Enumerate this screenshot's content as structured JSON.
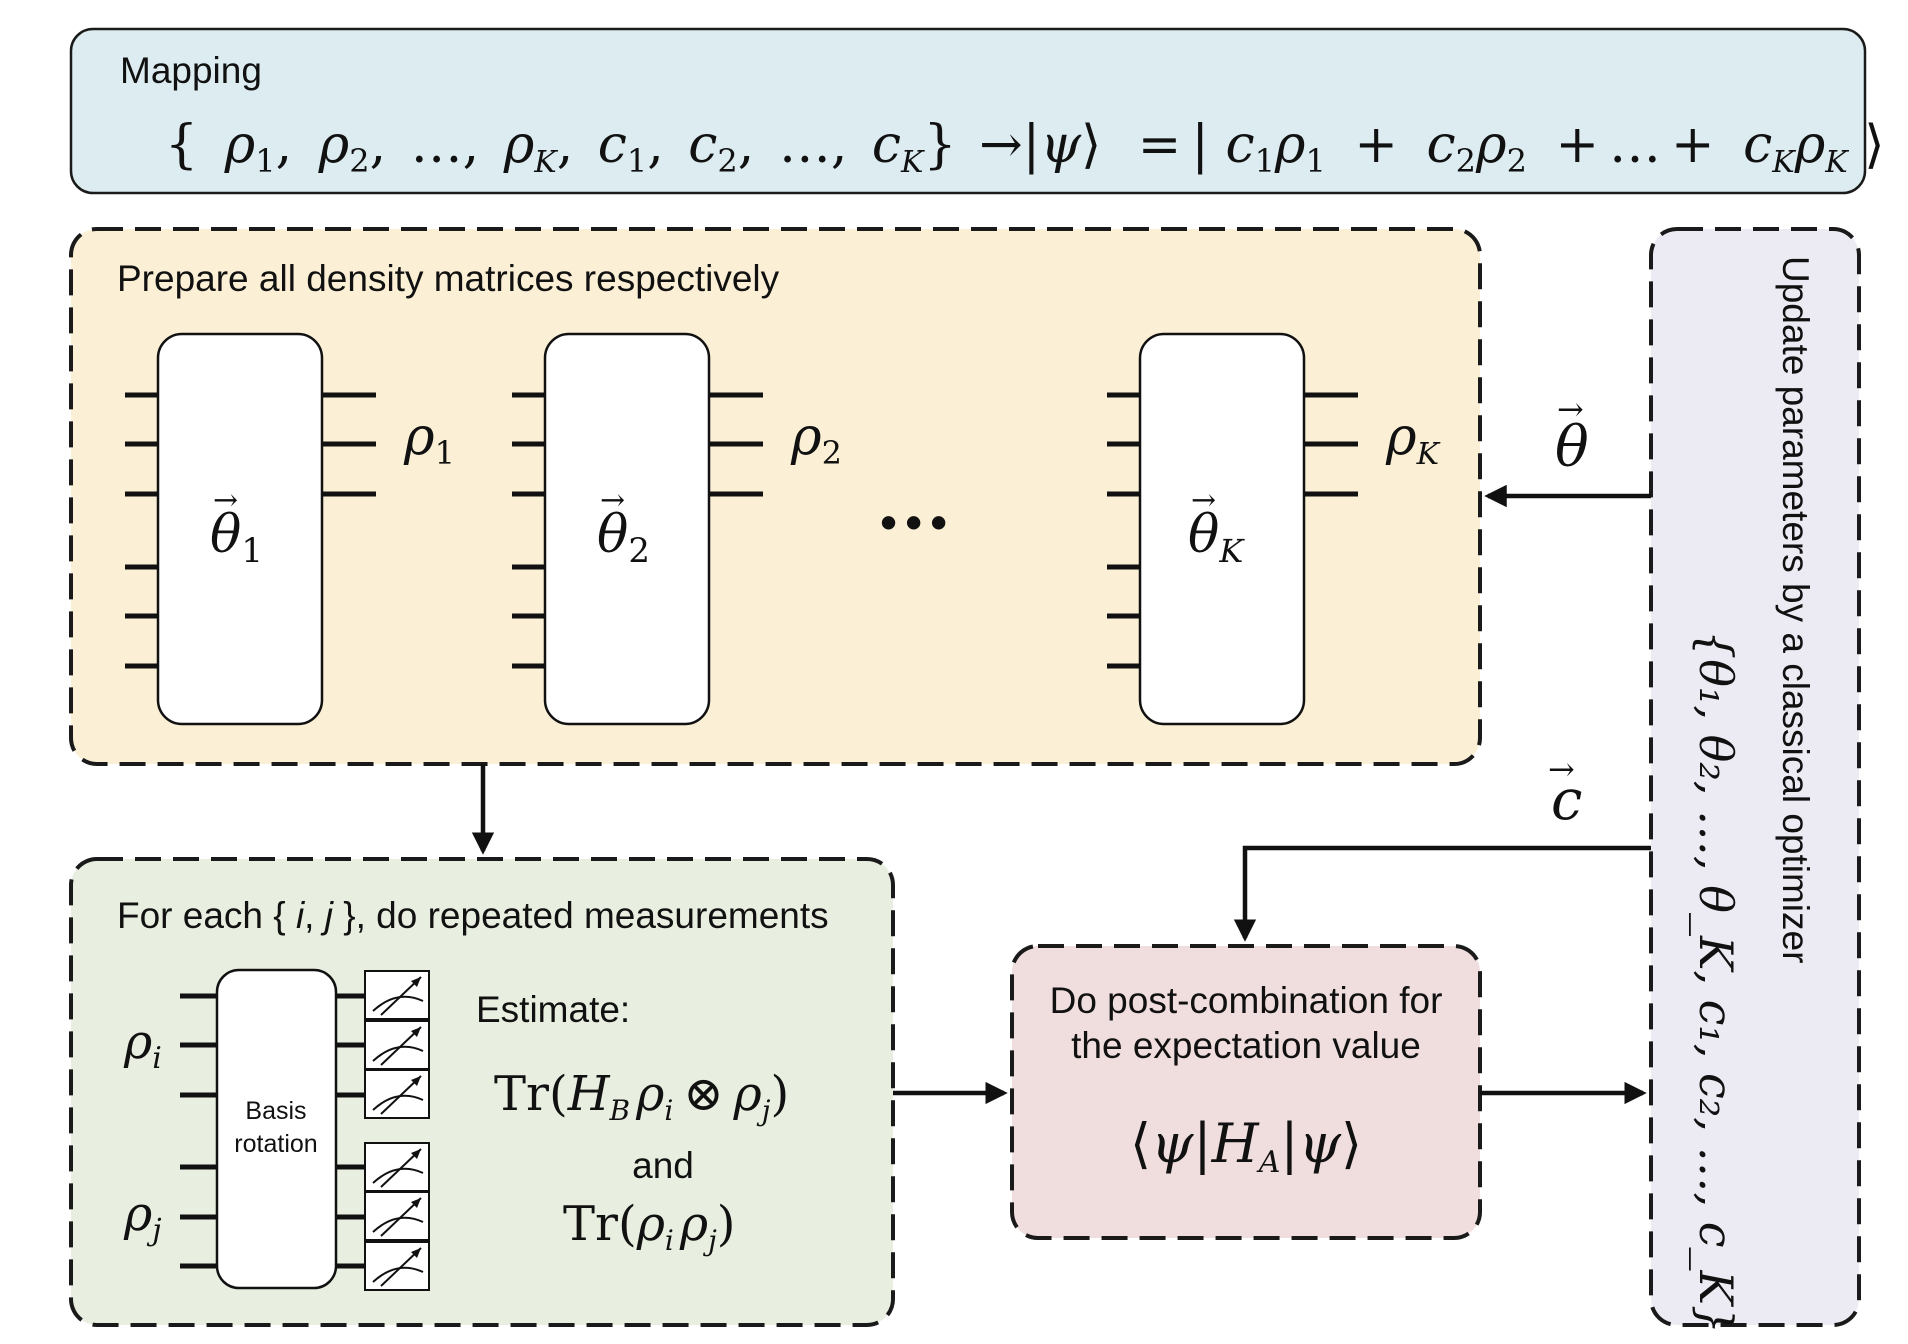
{
  "mapping": {
    "title": "Mapping",
    "equation": "{ρ₁, ρ₂, …, ρ_K, c₁, c₂, …, c_K} → |ψ⟩ = |c₁ρ₁ + c₂ρ₂ + … + c_Kρ_K⟩"
  },
  "prepare": {
    "title": "Prepare all density matrices respectively",
    "circuits": [
      {
        "param": "θ",
        "param_sub": "1",
        "output": "ρ",
        "output_sub": "1"
      },
      {
        "param": "θ",
        "param_sub": "2",
        "output": "ρ",
        "output_sub": "2"
      },
      {
        "param": "θ",
        "param_sub": "K",
        "output": "ρ",
        "output_sub": "K"
      }
    ],
    "ellipsis": "···"
  },
  "measure": {
    "title_pre": "For each { ",
    "title_i": "i",
    "title_comma": ", ",
    "title_j": "j",
    "title_post": " }, do repeated measurements",
    "input_i": "ρ",
    "input_i_sub": "i",
    "input_j": "ρ",
    "input_j_sub": "j",
    "basis_line1": "Basis",
    "basis_line2": "rotation",
    "estimate_label": "Estimate:",
    "expr1": "Tr(H_B ρ_i ⊗ ρ_j)",
    "and_label": "and",
    "expr2": "Tr(ρ_i ρ_j)"
  },
  "combine": {
    "line1": "Do post-combination for",
    "line2": "the expectation value",
    "expr": "⟨ψ|H_A|ψ⟩"
  },
  "optimizer": {
    "title": "Update parameters by a classical optimizer",
    "params": "{θ₁, θ₂, …, θ_K, c₁, c₂, …, c_K}"
  },
  "arrows": {
    "theta_label": "θ",
    "c_label": "c"
  },
  "colors": {
    "mapping_bg": "#dcecf0",
    "prepare_bg": "#fbf0d6",
    "measure_bg": "#e8efe0",
    "combine_bg": "#f0dede",
    "optimizer_bg": "#ecebf3"
  }
}
